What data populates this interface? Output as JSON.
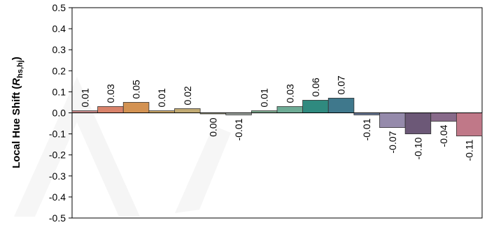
{
  "chart_data": {
    "type": "bar",
    "ylabel": {
      "main": "Local Hue Shift (",
      "symbol": "R",
      "subscript": "hs,hj",
      "close": ")"
    },
    "ylim": [
      -0.5,
      0.5
    ],
    "yticks": [
      0.5,
      0.4,
      0.3,
      0.2,
      0.1,
      0.0,
      -0.1,
      -0.2,
      -0.3,
      -0.4,
      -0.5
    ],
    "ytick_labels": [
      "0.5",
      "0.4",
      "0.3",
      "0.2",
      "0.1",
      "0.0",
      "-0.1",
      "-0.2",
      "-0.3",
      "-0.4",
      "-0.5"
    ],
    "grid": false,
    "values": [
      0.01,
      0.03,
      0.05,
      0.01,
      0.02,
      0.0,
      -0.01,
      0.01,
      0.03,
      0.06,
      0.07,
      -0.01,
      -0.07,
      -0.1,
      -0.04,
      -0.11
    ],
    "data_labels": [
      "0.01",
      "0.03",
      "0.05",
      "0.01",
      "0.02",
      "0.00",
      "-0.01",
      "0.01",
      "0.03",
      "0.06",
      "0.07",
      "-0.01",
      "-0.07",
      "-0.10",
      "-0.04",
      "-0.11"
    ],
    "colors": [
      "#c98b8b",
      "#d9826a",
      "#d39252",
      "#c9a565",
      "#c1aa73",
      "#a9a98a",
      "#a4aba6",
      "#7ea98f",
      "#6dab95",
      "#2f8a7f",
      "#3f788c",
      "#6d7d9c",
      "#958aab",
      "#6c5877",
      "#886a8a",
      "#c07888"
    ]
  }
}
